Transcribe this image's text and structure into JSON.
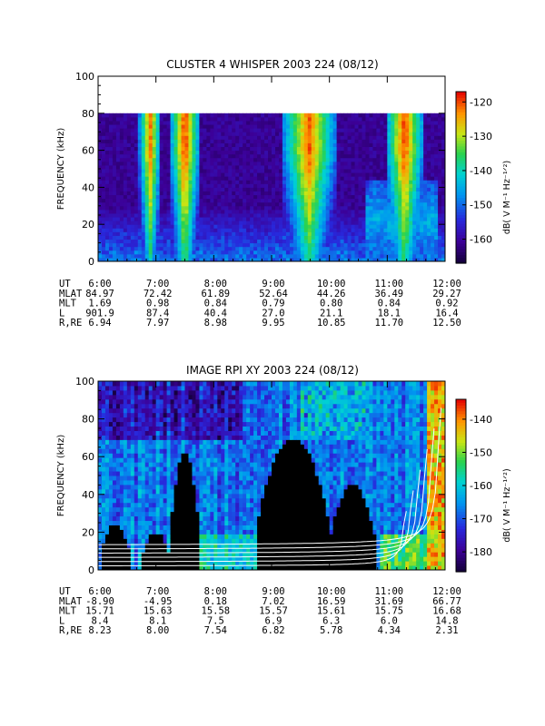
{
  "chart_data": [
    {
      "type": "heatmap",
      "title": "CLUSTER 4 WHISPER 2003 224 (08/12)",
      "ylabel": "FREQUENCY (kHz)",
      "ylim": [
        0,
        100
      ],
      "y_ticks": [
        "0",
        "20",
        "40",
        "60",
        "80",
        "100"
      ],
      "x_ticks": [
        "6:00",
        "7:00",
        "8:00",
        "9:00",
        "10:00",
        "11:00",
        "12:00"
      ],
      "xlim_hours": [
        6,
        12
      ],
      "data_ceiling_khz": 80,
      "colorbar": {
        "label": "dB( V M⁻¹ Hz⁻¹ᐟ²)",
        "label_text": "dB( V M",
        "range": [
          -167,
          -117
        ],
        "ticks": [
          "-120",
          "-130",
          "-140",
          "-150",
          "-160"
        ]
      },
      "ephemeris": [
        {
          "name": "UT",
          "values": [
            "6:00",
            "7:00",
            "8:00",
            "9:00",
            "10:00",
            "11:00",
            "12:00"
          ]
        },
        {
          "name": "MLAT",
          "values": [
            "84.97",
            "72.42",
            "61.89",
            "52.64",
            "44.26",
            "36.49",
            "29.27"
          ]
        },
        {
          "name": "MLT",
          "values": [
            "1.69",
            "0.98",
            "0.84",
            "0.79",
            "0.80",
            "0.84",
            "0.92"
          ]
        },
        {
          "name": "L",
          "values": [
            "901.9",
            "87.4",
            "40.4",
            "27.0",
            "21.1",
            "18.1",
            "16.4"
          ]
        },
        {
          "name": "R,RE",
          "values": [
            "6.94",
            "7.97",
            "8.98",
            "9.95",
            "10.85",
            "11.70",
            "12.50"
          ]
        }
      ],
      "features": [
        {
          "kind": "burst",
          "t_hours": 6.9,
          "width": 0.12,
          "top_khz": 80,
          "level": -123
        },
        {
          "kind": "burst",
          "t_hours": 7.5,
          "width": 0.15,
          "top_khz": 80,
          "level": -120
        },
        {
          "kind": "burst",
          "t_hours": 9.65,
          "width": 0.28,
          "top_khz": 80,
          "level": -122
        },
        {
          "kind": "burst",
          "t_hours": 11.3,
          "width": 0.2,
          "top_khz": 80,
          "level": -121
        },
        {
          "kind": "background",
          "level": -162
        }
      ]
    },
    {
      "type": "heatmap",
      "title": "IMAGE RPI XY 2003 224 (08/12)",
      "ylabel": "FREQUENCY (kHz)",
      "ylim": [
        0,
        100
      ],
      "y_ticks": [
        "0",
        "20",
        "40",
        "60",
        "80",
        "100"
      ],
      "x_ticks": [
        "6:00",
        "7:00",
        "8:00",
        "9:00",
        "10:00",
        "11:00",
        "12:00"
      ],
      "xlim_hours": [
        6,
        12
      ],
      "colorbar": {
        "label_text": "dB( V M",
        "range": [
          -186,
          -134
        ],
        "ticks": [
          "-140",
          "-150",
          "-160",
          "-170",
          "-180"
        ]
      },
      "ephemeris": [
        {
          "name": "UT",
          "values": [
            "6:00",
            "7:00",
            "8:00",
            "9:00",
            "10:00",
            "11:00",
            "12:00"
          ]
        },
        {
          "name": "MLAT",
          "values": [
            "-8.90",
            "-4.95",
            "0.18",
            "7.02",
            "16.59",
            "31.69",
            "66.77"
          ]
        },
        {
          "name": "MLT",
          "values": [
            "15.71",
            "15.63",
            "15.58",
            "15.57",
            "15.61",
            "15.75",
            "16.68"
          ]
        },
        {
          "name": "L",
          "values": [
            "8.4",
            "8.1",
            "7.5",
            "6.9",
            "6.3",
            "6.0",
            "14.8"
          ]
        },
        {
          "name": "R,RE",
          "values": [
            "8.23",
            "8.00",
            "7.54",
            "6.82",
            "5.78",
            "4.34",
            "2.31"
          ]
        }
      ],
      "black_regions": [
        {
          "t_start": 6.05,
          "t_end": 6.55,
          "top_khz": 25
        },
        {
          "t_start": 6.75,
          "t_end": 7.25,
          "top_khz": 20
        },
        {
          "t_start": 7.25,
          "t_end": 7.75,
          "top_khz": 62
        },
        {
          "t_start": 8.75,
          "t_end": 10.0,
          "top_khz": 70
        },
        {
          "t_start": 10.0,
          "t_end": 10.8,
          "top_khz": 45
        }
      ],
      "overlay_curves": {
        "color": "#ffffff",
        "count": 6
      }
    }
  ]
}
